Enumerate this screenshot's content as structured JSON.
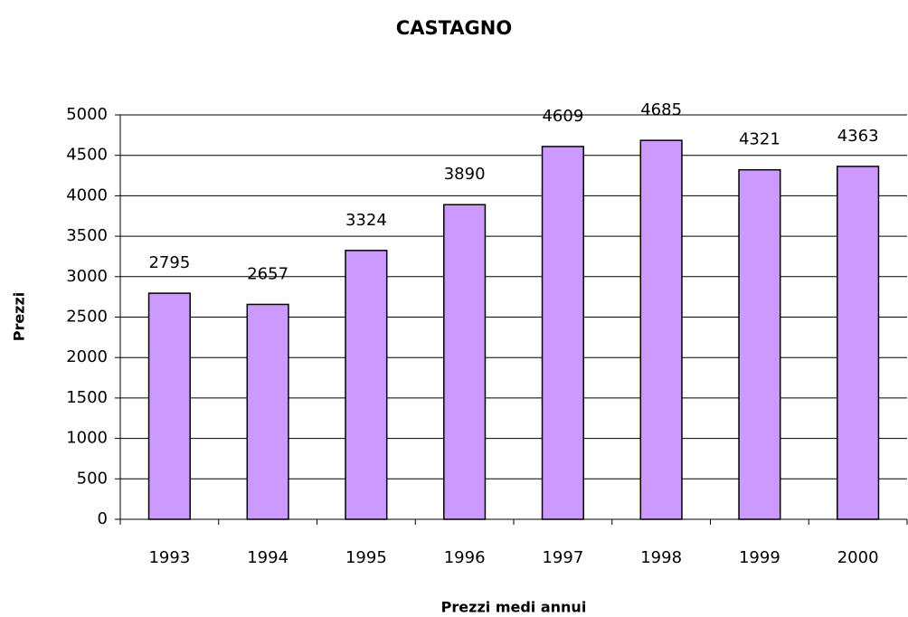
{
  "chart_data": {
    "type": "bar",
    "title": "CASTAGNO",
    "x_label": "Prezzi medi annui",
    "y_label": "Prezzi",
    "categories": [
      "1993",
      "1994",
      "1995",
      "1996",
      "1997",
      "1998",
      "1999",
      "2000"
    ],
    "values": [
      2795,
      2657,
      3324,
      3890,
      4609,
      4685,
      4321,
      4363
    ],
    "color": "#cc99ff",
    "ylim": [
      0,
      5000
    ],
    "yticks": [
      0,
      500,
      1000,
      1500,
      2000,
      2500,
      3000,
      3500,
      4000,
      4500,
      5000
    ],
    "grid": true
  }
}
